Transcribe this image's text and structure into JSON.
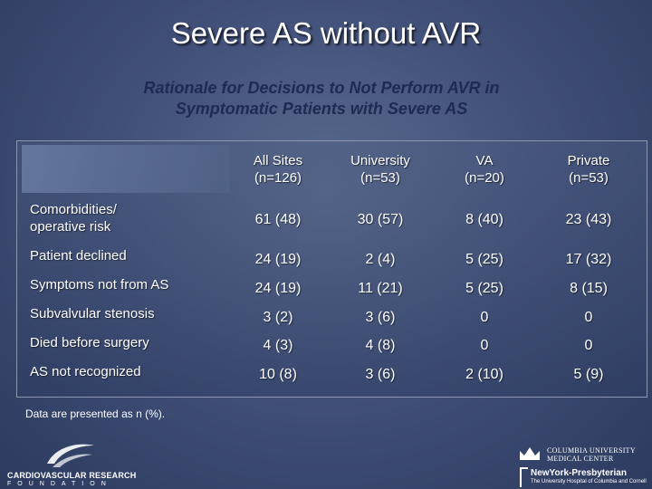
{
  "title": "Severe AS without AVR",
  "subtitle": {
    "line1": "Rationale for Decisions to Not Perform AVR in",
    "line2": "Symptomatic Patients with Severe AS"
  },
  "table": {
    "columns": [
      {
        "line1": "All Sites",
        "line2": "(n=126)"
      },
      {
        "line1": "University",
        "line2": "(n=53)"
      },
      {
        "line1": "VA",
        "line2": "(n=20)"
      },
      {
        "line1": "Private",
        "line2": "(n=53)"
      }
    ],
    "rows": [
      {
        "label_line1": "Comorbidities/",
        "label_line2": "operative risk",
        "values": [
          "61 (48)",
          "30 (57)",
          "8 (40)",
          "23 (43)"
        ]
      },
      {
        "label_line1": "Patient declined",
        "label_line2": "",
        "values": [
          "24 (19)",
          "2 (4)",
          "5 (25)",
          "17 (32)"
        ]
      },
      {
        "label_line1": "Symptoms not from AS",
        "label_line2": "",
        "values": [
          "24 (19)",
          "11 (21)",
          "5 (25)",
          "8 (15)"
        ]
      },
      {
        "label_line1": "Subvalvular stenosis",
        "label_line2": "",
        "values": [
          "3 (2)",
          "3 (6)",
          "0",
          "0"
        ]
      },
      {
        "label_line1": "Died before surgery",
        "label_line2": "",
        "values": [
          "4 (3)",
          "4 (8)",
          "0",
          "0"
        ]
      },
      {
        "label_line1": "AS not recognized",
        "label_line2": "",
        "values": [
          "10 (8)",
          "3 (6)",
          "2 (10)",
          "5 (9)"
        ]
      }
    ]
  },
  "footnote": "Data are presented as n (%).",
  "logos": {
    "crf_line1": "CARDIOVASCULAR RESEARCH",
    "crf_line2": "FOUNDATION",
    "cu_line1": "COLUMBIA UNIVERSITY",
    "cu_line2": "MEDICAL CENTER",
    "nyp_line1": "NewYork-Presbyterian",
    "nyp_line2": "The University Hospital of Columbia and Cornell"
  },
  "colors": {
    "background": "#42517a",
    "subtitle": "#1f2a52",
    "text": "#ffffff"
  }
}
